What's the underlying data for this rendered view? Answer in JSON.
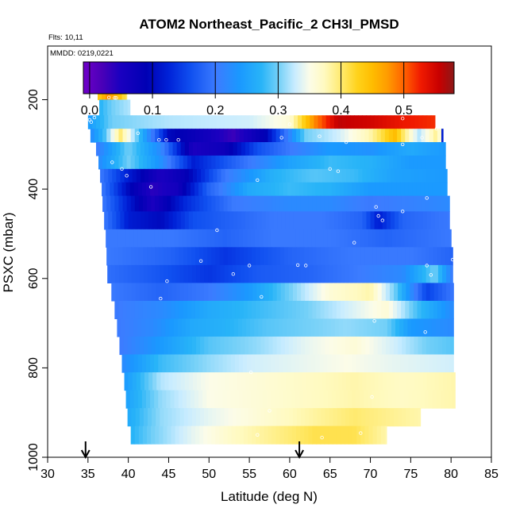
{
  "chart_data": {
    "type": "heatmap",
    "title": "ATOM2 Northeast_Pacific_2 CH3I_PMSD",
    "annotations": {
      "flights": "Flts: 10,11",
      "dates": "MMDD: 0219,0221"
    },
    "xlabel": "Latitude (deg N)",
    "ylabel": "PSXC (mbar)",
    "xlim": [
      30,
      85
    ],
    "ylim": [
      1000,
      80
    ],
    "x_ticks": [
      "30",
      "35",
      "40",
      "45",
      "50",
      "55",
      "60",
      "65",
      "70",
      "75",
      "80",
      "85"
    ],
    "y_ticks": [
      "200",
      "400",
      "600",
      "800",
      "1000"
    ],
    "colorbar": {
      "range": [
        -0.01,
        0.58
      ],
      "ticks": [
        "0.0",
        "0.1",
        "0.2",
        "0.3",
        "0.4",
        "0.5"
      ]
    },
    "flight_markers_latitude": [
      34.7,
      61.2
    ],
    "profile_rows": [
      {
        "p_top": 160,
        "p_bottom": 200,
        "lat_start": 36.2,
        "lat_end": 39.8,
        "knots": [
          [
            36.2,
            0.43
          ],
          [
            37.5,
            0.48
          ],
          [
            39.0,
            0.44
          ],
          [
            39.8,
            0.4
          ]
        ]
      },
      {
        "p_top": 200,
        "p_bottom": 235,
        "lat_start": 36.4,
        "lat_end": 40.2,
        "knots": [
          [
            36.4,
            0.27
          ],
          [
            38,
            0.3
          ],
          [
            40.2,
            0.32
          ]
        ]
      },
      {
        "p_top": 235,
        "p_bottom": 265,
        "lat_start": 35.0,
        "lat_end": 78.0,
        "knots": [
          [
            35,
            0.24
          ],
          [
            38,
            0.3
          ],
          [
            45,
            0.32
          ],
          [
            55,
            0.33
          ],
          [
            60,
            0.36
          ],
          [
            63,
            0.48
          ],
          [
            66,
            0.56
          ],
          [
            70,
            0.55
          ],
          [
            74,
            0.53
          ],
          [
            78,
            0.52
          ]
        ]
      },
      {
        "p_top": 265,
        "p_bottom": 295,
        "lat_start": 35.3,
        "lat_end": 79.0,
        "knots": [
          [
            35.3,
            0.22
          ],
          [
            37,
            0.28
          ],
          [
            39,
            0.4
          ],
          [
            41,
            0.3
          ],
          [
            45,
            0.1
          ],
          [
            50,
            0.06
          ],
          [
            53,
            0.03
          ],
          [
            57,
            0.09
          ],
          [
            62,
            0.3
          ],
          [
            66,
            0.33
          ],
          [
            70,
            0.38
          ],
          [
            73,
            0.45
          ],
          [
            76,
            0.32
          ],
          [
            78.5,
            0.4
          ],
          [
            79,
            0.05
          ]
        ]
      },
      {
        "p_top": 295,
        "p_bottom": 325,
        "lat_start": 36.0,
        "lat_end": 79.3,
        "knots": [
          [
            36,
            0.2
          ],
          [
            40,
            0.3
          ],
          [
            44,
            0.22
          ],
          [
            48,
            0.05
          ],
          [
            52,
            0.07
          ],
          [
            56,
            0.16
          ],
          [
            60,
            0.2
          ],
          [
            65,
            0.24
          ],
          [
            70,
            0.23
          ],
          [
            75,
            0.26
          ],
          [
            79.3,
            0.24
          ]
        ]
      },
      {
        "p_top": 325,
        "p_bottom": 355,
        "lat_start": 36.3,
        "lat_end": 79.3,
        "knots": [
          [
            36.3,
            0.22
          ],
          [
            40,
            0.3
          ],
          [
            44,
            0.23
          ],
          [
            48,
            0.12
          ],
          [
            55,
            0.2
          ],
          [
            60,
            0.25
          ],
          [
            65,
            0.28
          ],
          [
            70,
            0.27
          ],
          [
            75,
            0.24
          ],
          [
            79.3,
            0.24
          ]
        ]
      },
      {
        "p_top": 355,
        "p_bottom": 385,
        "lat_start": 36.5,
        "lat_end": 79.5,
        "knots": [
          [
            36.5,
            0.2
          ],
          [
            40,
            0.12
          ],
          [
            44,
            0.05
          ],
          [
            47,
            0.08
          ],
          [
            52,
            0.2
          ],
          [
            58,
            0.27
          ],
          [
            63,
            0.29
          ],
          [
            68,
            0.28
          ],
          [
            73,
            0.25
          ],
          [
            79.5,
            0.24
          ]
        ]
      },
      {
        "p_top": 385,
        "p_bottom": 415,
        "lat_start": 36.7,
        "lat_end": 79.5,
        "knots": [
          [
            36.7,
            0.2
          ],
          [
            40,
            0.1
          ],
          [
            43,
            0.04
          ],
          [
            46,
            0.06
          ],
          [
            50,
            0.18
          ],
          [
            55,
            0.26
          ],
          [
            60,
            0.28
          ],
          [
            65,
            0.27
          ],
          [
            70,
            0.24
          ],
          [
            79.5,
            0.24
          ]
        ]
      },
      {
        "p_top": 415,
        "p_bottom": 450,
        "lat_start": 36.8,
        "lat_end": 79.8,
        "knots": [
          [
            36.8,
            0.2
          ],
          [
            40,
            0.12
          ],
          [
            43,
            0.05
          ],
          [
            47,
            0.13
          ],
          [
            53,
            0.2
          ],
          [
            60,
            0.22
          ],
          [
            65,
            0.22
          ],
          [
            70,
            0.2
          ],
          [
            75,
            0.21
          ],
          [
            79.8,
            0.22
          ]
        ]
      },
      {
        "p_top": 450,
        "p_bottom": 490,
        "lat_start": 37.0,
        "lat_end": 79.8,
        "knots": [
          [
            37,
            0.2
          ],
          [
            40,
            0.12
          ],
          [
            44,
            0.1
          ],
          [
            48,
            0.16
          ],
          [
            53,
            0.18
          ],
          [
            58,
            0.2
          ],
          [
            64,
            0.2
          ],
          [
            69,
            0.18
          ],
          [
            71,
            0.12
          ],
          [
            74,
            0.18
          ],
          [
            79.8,
            0.2
          ]
        ]
      },
      {
        "p_top": 490,
        "p_bottom": 530,
        "lat_start": 37.2,
        "lat_end": 80.0,
        "knots": [
          [
            37.2,
            0.2
          ],
          [
            45,
            0.2
          ],
          [
            52,
            0.18
          ],
          [
            58,
            0.2
          ],
          [
            65,
            0.2
          ],
          [
            72,
            0.18
          ],
          [
            80,
            0.2
          ]
        ]
      },
      {
        "p_top": 530,
        "p_bottom": 570,
        "lat_start": 37.3,
        "lat_end": 80.2,
        "knots": [
          [
            37.3,
            0.2
          ],
          [
            45,
            0.18
          ],
          [
            52,
            0.14
          ],
          [
            60,
            0.18
          ],
          [
            68,
            0.2
          ],
          [
            75,
            0.2
          ],
          [
            80.2,
            0.18
          ]
        ]
      },
      {
        "p_top": 570,
        "p_bottom": 610,
        "lat_start": 37.4,
        "lat_end": 80.2,
        "knots": [
          [
            37.4,
            0.19
          ],
          [
            43,
            0.17
          ],
          [
            50,
            0.14
          ],
          [
            56,
            0.17
          ],
          [
            62,
            0.18
          ],
          [
            68,
            0.2
          ],
          [
            74,
            0.22
          ],
          [
            78,
            0.3
          ],
          [
            80.2,
            0.2
          ]
        ]
      },
      {
        "p_top": 610,
        "p_bottom": 650,
        "lat_start": 37.9,
        "lat_end": 80.3,
        "knots": [
          [
            37.9,
            0.2
          ],
          [
            44,
            0.18
          ],
          [
            50,
            0.2
          ],
          [
            55,
            0.24
          ],
          [
            60,
            0.3
          ],
          [
            65,
            0.36
          ],
          [
            70,
            0.38
          ],
          [
            73,
            0.3
          ],
          [
            77,
            0.15
          ],
          [
            80.3,
            0.2
          ]
        ]
      },
      {
        "p_top": 650,
        "p_bottom": 690,
        "lat_start": 38.3,
        "lat_end": 80.3,
        "knots": [
          [
            38.3,
            0.2
          ],
          [
            44,
            0.22
          ],
          [
            50,
            0.26
          ],
          [
            56,
            0.28
          ],
          [
            62,
            0.3
          ],
          [
            67,
            0.33
          ],
          [
            72,
            0.36
          ],
          [
            76,
            0.28
          ],
          [
            80.3,
            0.22
          ]
        ]
      },
      {
        "p_top": 690,
        "p_bottom": 730,
        "lat_start": 38.6,
        "lat_end": 80.3,
        "knots": [
          [
            38.6,
            0.2
          ],
          [
            43,
            0.22
          ],
          [
            48,
            0.26
          ],
          [
            52,
            0.27
          ],
          [
            57,
            0.29
          ],
          [
            62,
            0.3
          ],
          [
            67,
            0.31
          ],
          [
            72,
            0.3
          ],
          [
            75,
            0.24
          ],
          [
            80.3,
            0.22
          ]
        ]
      },
      {
        "p_top": 730,
        "p_bottom": 770,
        "lat_start": 38.9,
        "lat_end": 80.3,
        "knots": [
          [
            38.9,
            0.2
          ],
          [
            44,
            0.24
          ],
          [
            50,
            0.29
          ],
          [
            56,
            0.31
          ],
          [
            62,
            0.34
          ],
          [
            68,
            0.36
          ],
          [
            73,
            0.33
          ],
          [
            77,
            0.3
          ],
          [
            80.3,
            0.29
          ]
        ]
      },
      {
        "p_top": 770,
        "p_bottom": 810,
        "lat_start": 39.2,
        "lat_end": 80.3,
        "knots": [
          [
            39.2,
            0.22
          ],
          [
            44,
            0.28
          ],
          [
            50,
            0.31
          ],
          [
            55,
            0.33
          ],
          [
            61,
            0.34
          ],
          [
            67,
            0.35
          ],
          [
            73,
            0.34
          ],
          [
            80.3,
            0.33
          ]
        ]
      },
      {
        "p_top": 810,
        "p_bottom": 850,
        "lat_start": 39.5,
        "lat_end": 80.5,
        "knots": [
          [
            39.5,
            0.24
          ],
          [
            44,
            0.32
          ],
          [
            50,
            0.35
          ],
          [
            56,
            0.36
          ],
          [
            62,
            0.37
          ],
          [
            68,
            0.38
          ],
          [
            74,
            0.37
          ],
          [
            80.5,
            0.38
          ]
        ]
      },
      {
        "p_top": 850,
        "p_bottom": 890,
        "lat_start": 39.7,
        "lat_end": 80.5,
        "knots": [
          [
            39.7,
            0.25
          ],
          [
            44,
            0.31
          ],
          [
            50,
            0.35
          ],
          [
            56,
            0.36
          ],
          [
            62,
            0.37
          ],
          [
            68,
            0.38
          ],
          [
            74,
            0.37
          ],
          [
            80.5,
            0.38
          ]
        ]
      },
      {
        "p_top": 890,
        "p_bottom": 930,
        "lat_start": 39.9,
        "lat_end": 76.2,
        "knots": [
          [
            39.9,
            0.26
          ],
          [
            44,
            0.31
          ],
          [
            50,
            0.34
          ],
          [
            56,
            0.36
          ],
          [
            62,
            0.38
          ],
          [
            68,
            0.4
          ],
          [
            72,
            0.39
          ],
          [
            76.2,
            0.38
          ]
        ]
      },
      {
        "p_top": 930,
        "p_bottom": 970,
        "lat_start": 40.3,
        "lat_end": 72.0,
        "knots": [
          [
            40.3,
            0.27
          ],
          [
            43,
            0.3
          ],
          [
            48,
            0.34
          ],
          [
            53,
            0.37
          ],
          [
            58,
            0.39
          ],
          [
            63,
            0.41
          ],
          [
            68,
            0.41
          ],
          [
            72,
            0.38
          ]
        ]
      }
    ],
    "sample_points": [
      [
        35.7,
        230
      ],
      [
        35.2,
        245
      ],
      [
        35.8,
        240
      ],
      [
        35.4,
        250
      ],
      [
        37.6,
        195
      ],
      [
        38.3,
        196
      ],
      [
        38.5,
        196
      ],
      [
        41.2,
        275
      ],
      [
        38.0,
        340
      ],
      [
        39.8,
        370
      ],
      [
        43.8,
        290
      ],
      [
        44.7,
        290
      ],
      [
        46.2,
        290
      ],
      [
        42.8,
        395
      ],
      [
        39.2,
        355
      ],
      [
        60.0,
        255
      ],
      [
        68.2,
        220
      ],
      [
        74.0,
        242
      ],
      [
        78.2,
        265
      ],
      [
        76.4,
        285
      ],
      [
        67.0,
        295
      ],
      [
        63.7,
        282
      ],
      [
        74.0,
        300
      ],
      [
        59.0,
        285
      ],
      [
        65.0,
        355
      ],
      [
        66.0,
        360
      ],
      [
        56.0,
        380
      ],
      [
        70.7,
        440
      ],
      [
        71.5,
        470
      ],
      [
        74.0,
        450
      ],
      [
        77.0,
        420
      ],
      [
        51.0,
        492
      ],
      [
        68.0,
        520
      ],
      [
        71.0,
        460
      ],
      [
        49.0,
        561
      ],
      [
        55.0,
        571
      ],
      [
        61.0,
        570
      ],
      [
        62.0,
        571
      ],
      [
        77.0,
        571
      ],
      [
        80.2,
        558
      ],
      [
        44.8,
        606
      ],
      [
        53.0,
        590
      ],
      [
        77.5,
        592
      ],
      [
        56.5,
        641
      ],
      [
        44.0,
        645
      ],
      [
        76.8,
        720
      ],
      [
        70.5,
        695
      ],
      [
        70.2,
        865
      ],
      [
        55.2,
        810
      ],
      [
        57.5,
        896
      ],
      [
        68.8,
        946
      ],
      [
        64.0,
        956
      ],
      [
        56.0,
        950
      ]
    ]
  }
}
